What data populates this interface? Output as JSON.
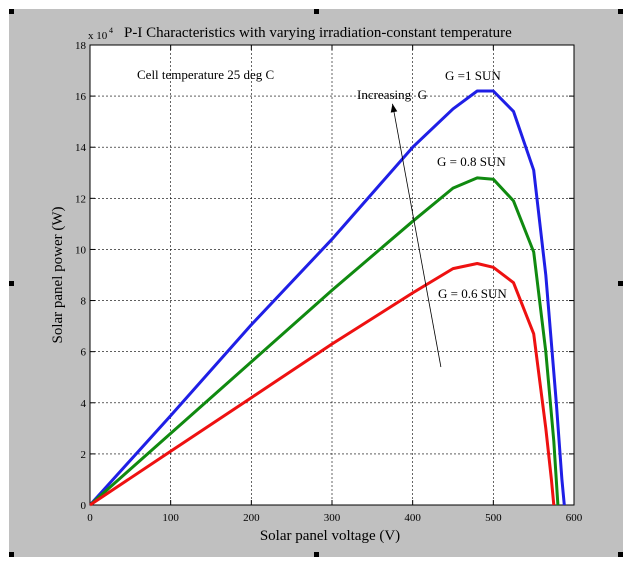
{
  "chart_data": {
    "type": "line",
    "title": "P-I Characteristics with varying irradiation-constant temperature",
    "xlabel": "Solar panel voltage (V)",
    "ylabel": "Solar panel power (W)",
    "y_multiplier_label": "x 10",
    "y_multiplier_exponent": "4",
    "xlim": [
      0,
      600
    ],
    "ylim": [
      0,
      180000
    ],
    "xticks": [
      0,
      100,
      200,
      300,
      400,
      500,
      600
    ],
    "yticks": [
      0,
      20000,
      40000,
      60000,
      80000,
      100000,
      120000,
      140000,
      160000,
      180000
    ],
    "ytick_labels": [
      "0",
      "2",
      "4",
      "6",
      "8",
      "10",
      "12",
      "14",
      "16",
      "18"
    ],
    "grid": true,
    "series": [
      {
        "name": "G =1 SUN",
        "color": "#1f1fe6",
        "points": [
          [
            0,
            0
          ],
          [
            100,
            35000
          ],
          [
            200,
            70500
          ],
          [
            300,
            104000
          ],
          [
            400,
            140000
          ],
          [
            450,
            155000
          ],
          [
            480,
            162000
          ],
          [
            500,
            162000
          ],
          [
            525,
            154000
          ],
          [
            550,
            131000
          ],
          [
            565,
            90000
          ],
          [
            578,
            40000
          ],
          [
            585,
            10000
          ],
          [
            588,
            0
          ]
        ]
      },
      {
        "name": "G = 0.8 SUN",
        "color": "#108a10",
        "points": [
          [
            0,
            0
          ],
          [
            100,
            28000
          ],
          [
            200,
            56000
          ],
          [
            300,
            84000
          ],
          [
            400,
            111000
          ],
          [
            450,
            124000
          ],
          [
            480,
            128000
          ],
          [
            500,
            127500
          ],
          [
            525,
            119000
          ],
          [
            550,
            99000
          ],
          [
            565,
            60000
          ],
          [
            575,
            25000
          ],
          [
            580,
            0
          ]
        ]
      },
      {
        "name": "G = 0.6 SUN",
        "color": "#ee1111",
        "points": [
          [
            0,
            0
          ],
          [
            100,
            21000
          ],
          [
            200,
            42000
          ],
          [
            300,
            63000
          ],
          [
            400,
            83000
          ],
          [
            450,
            92500
          ],
          [
            480,
            94500
          ],
          [
            500,
            93000
          ],
          [
            525,
            87000
          ],
          [
            550,
            67000
          ],
          [
            565,
            30000
          ],
          [
            572,
            10000
          ],
          [
            575,
            0
          ]
        ]
      }
    ],
    "annotations": {
      "cell_temperature": "Cell temperature 25 deg C",
      "increasing": "Increasing  G",
      "arrow_from": [
        435,
        54000
      ],
      "arrow_to": [
        375,
        157000
      ]
    }
  }
}
